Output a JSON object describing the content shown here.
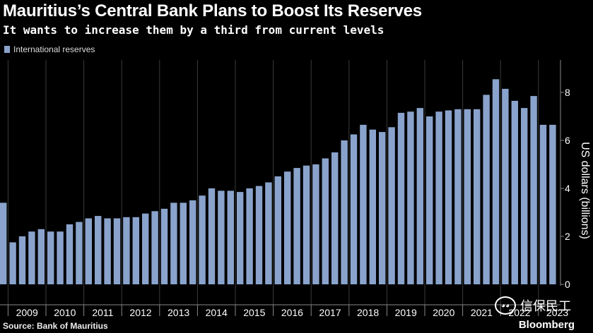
{
  "header": {
    "title": "Mauritius’s Central Bank Plans to Boost Its Reserves",
    "subtitle": "It wants to increase them by a third from current levels"
  },
  "footer": {
    "source": "Source: Bank of Mauritius",
    "brand": "Bloomberg",
    "watermark_text": "信保民工",
    "watermark_icon": "wechat-icon"
  },
  "colors": {
    "bar": "#8aa3cc",
    "background": "#000000",
    "grid": "#3a3a3a"
  },
  "chart_data": {
    "type": "bar",
    "legend": {
      "entries": [
        "International reserves"
      ],
      "placement": "top-left"
    },
    "ylabel": "US dollars (billions)",
    "ylim": [
      0,
      9
    ],
    "yticks": [
      0,
      2,
      4,
      6,
      8
    ],
    "x_tick_labels": [
      "2009",
      "2010",
      "2011",
      "2012",
      "2013",
      "2014",
      "2015",
      "2016",
      "2017",
      "2018",
      "2019",
      "2020",
      "2021",
      "2022",
      "2023"
    ],
    "bars_per_year": 4,
    "first_year_start_index": 1,
    "values": [
      3.4,
      1.75,
      2.0,
      2.2,
      2.3,
      2.2,
      2.2,
      2.5,
      2.6,
      2.75,
      2.85,
      2.75,
      2.75,
      2.8,
      2.8,
      2.95,
      3.05,
      3.15,
      3.4,
      3.4,
      3.5,
      3.7,
      4.0,
      3.9,
      3.9,
      3.85,
      4.0,
      4.1,
      4.25,
      4.5,
      4.7,
      4.85,
      4.95,
      5.0,
      5.25,
      5.5,
      6.0,
      6.25,
      6.65,
      6.45,
      6.35,
      6.55,
      7.15,
      7.2,
      7.35,
      7.0,
      7.2,
      7.25,
      7.3,
      7.3,
      7.3,
      7.9,
      8.55,
      8.15,
      7.65,
      7.35,
      7.85,
      6.65,
      6.65
    ]
  }
}
